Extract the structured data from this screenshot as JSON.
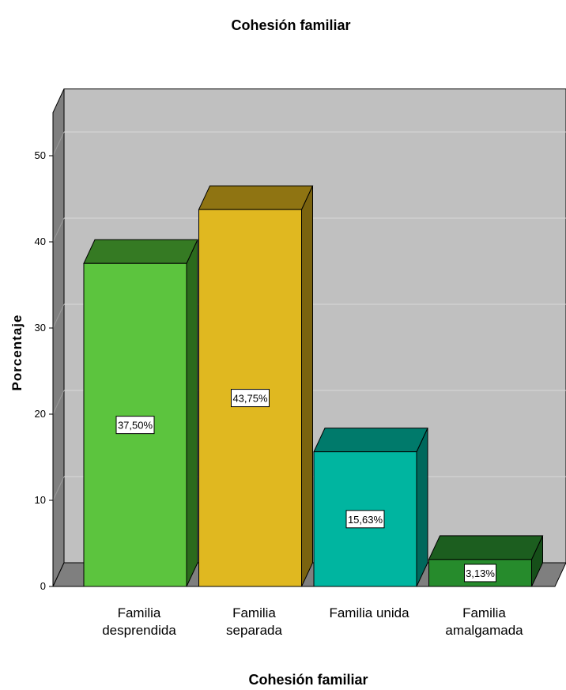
{
  "chart_data": {
    "type": "bar",
    "title": "Cohesión familiar",
    "xlabel": "Cohesión familiar",
    "ylabel": "Porcentaje",
    "ylim": [
      0,
      55
    ],
    "yticks": [
      0,
      10,
      20,
      30,
      40,
      50
    ],
    "grid": true,
    "style": "3d",
    "categories": [
      [
        "Familia",
        "desprendida"
      ],
      [
        "Familia",
        "separada"
      ],
      [
        "Familia unida"
      ],
      [
        "Familia",
        "amalgamada"
      ]
    ],
    "values": [
      37.5,
      43.75,
      15.63,
      3.13
    ],
    "data_labels": [
      "37,50%",
      "43,75%",
      "15,63%",
      "3,13%"
    ],
    "colors": [
      {
        "front": "#5cc43e",
        "top": "#357a23",
        "side": "#2b6a1c"
      },
      {
        "front": "#e0b820",
        "top": "#8f7412",
        "side": "#7a630f"
      },
      {
        "front": "#00b5a0",
        "top": "#007a6b",
        "side": "#00685c"
      },
      {
        "front": "#268b2c",
        "top": "#1c5e1f",
        "side": "#164f19"
      }
    ],
    "wall_color": "#c0c0c0",
    "wall_side_color": "#7f7f7f",
    "floor_color": "#7f7f7f"
  }
}
